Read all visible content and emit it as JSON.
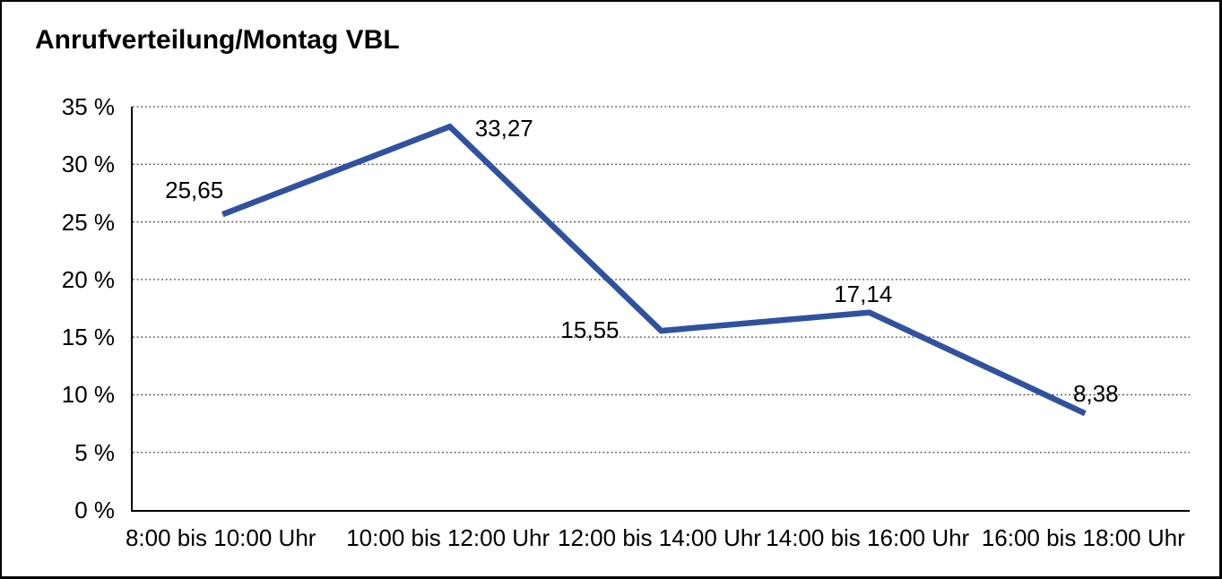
{
  "title": "Anrufverteilung/Montag VBL",
  "colors": {
    "line": "#30529E",
    "gridline": "#404040",
    "axis": "#000000",
    "frame_border": "#000000",
    "background": "#FFFFFF",
    "text": "#000000"
  },
  "chart_data": {
    "type": "line",
    "title": "Anrufverteilung/Montag VBL",
    "categories": [
      "8:00 bis 10:00 Uhr",
      "10:00 bis 12:00 Uhr",
      "12:00 bis 14:00 Uhr",
      "14:00 bis 16:00 Uhr",
      "16:00 bis 18:00 Uhr"
    ],
    "values": [
      25.65,
      33.27,
      15.55,
      17.14,
      8.38
    ],
    "value_labels": [
      "25,65",
      "33,27",
      "15,55",
      "17,14",
      "8,38"
    ],
    "xlabel": "",
    "ylabel": "",
    "ylim": [
      0,
      35
    ],
    "ytick_step": 5,
    "ytick_labels": [
      "0 %",
      "5 %",
      "10 %",
      "15 %",
      "20 %",
      "25 %",
      "30 %",
      "35 %"
    ],
    "grid": "horizontal-dotted",
    "legend": "none",
    "markers": "none"
  }
}
